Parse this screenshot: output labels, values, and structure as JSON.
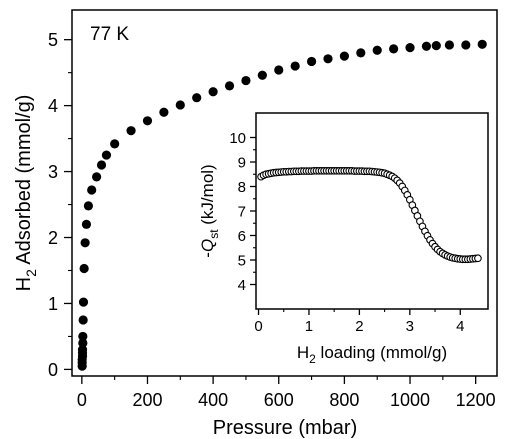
{
  "chart_data": [
    {
      "type": "scatter",
      "annotation": "77 K",
      "xlabel": "Pressure (mbar)",
      "ylabel_main": "H",
      "ylabel_sub": "2",
      "ylabel_rest": " Adsorbed (mmol/g)",
      "xlim": [
        -30,
        1265
      ],
      "ylim": [
        -0.1,
        5.45
      ],
      "xticks": [
        0,
        200,
        400,
        600,
        800,
        1000,
        1200
      ],
      "yticks": [
        0,
        1,
        2,
        3,
        4,
        5
      ],
      "marker": "filled-circle",
      "marker_color": "#000000",
      "series": [
        {
          "x": [
            1,
            1,
            1,
            2,
            2,
            2,
            3,
            3,
            4,
            5,
            7,
            10,
            14,
            20,
            30,
            45,
            60,
            75,
            100,
            150,
            200,
            250,
            300,
            350,
            400,
            450,
            500,
            550,
            600,
            650,
            700,
            750,
            800,
            850,
            900,
            950,
            1000,
            1050,
            1080,
            1120,
            1170,
            1220
          ],
          "y": [
            0.05,
            0.1,
            0.15,
            0.2,
            0.25,
            0.3,
            0.4,
            0.5,
            0.75,
            1.02,
            1.53,
            1.92,
            2.2,
            2.48,
            2.72,
            2.92,
            3.1,
            3.25,
            3.42,
            3.62,
            3.77,
            3.9,
            4.01,
            4.12,
            4.21,
            4.3,
            4.38,
            4.46,
            4.54,
            4.6,
            4.67,
            4.71,
            4.75,
            4.8,
            4.84,
            4.86,
            4.88,
            4.9,
            4.91,
            4.92,
            4.92,
            4.93
          ]
        }
      ]
    },
    {
      "type": "scatter",
      "xlabel_main": "H",
      "xlabel_sub": "2",
      "xlabel_rest": " loading (mmol/g)",
      "ylabel_prefix": "-",
      "ylabel_italic": "Q",
      "ylabel_sub": "st",
      "ylabel_rest": " (kJ/mol)",
      "xlim": [
        -0.05,
        4.55
      ],
      "ylim": [
        3.0,
        11.0
      ],
      "xticks": [
        0,
        1,
        2,
        3,
        4
      ],
      "yticks": [
        4,
        5,
        6,
        7,
        8,
        9,
        10
      ],
      "marker": "open-circle",
      "marker_color": "#000000",
      "series": [
        {
          "x": [
            0.05,
            0.1,
            0.15,
            0.2,
            0.25,
            0.3,
            0.35,
            0.4,
            0.45,
            0.5,
            0.55,
            0.6,
            0.65,
            0.7,
            0.75,
            0.8,
            0.85,
            0.9,
            0.95,
            1.0,
            1.05,
            1.1,
            1.15,
            1.2,
            1.25,
            1.3,
            1.35,
            1.4,
            1.45,
            1.5,
            1.55,
            1.6,
            1.65,
            1.7,
            1.75,
            1.8,
            1.85,
            1.9,
            1.95,
            2.0,
            2.05,
            2.1,
            2.15,
            2.2,
            2.25,
            2.3,
            2.35,
            2.4,
            2.45,
            2.5,
            2.55,
            2.6,
            2.65,
            2.7,
            2.75,
            2.8,
            2.85,
            2.9,
            2.95,
            3.0,
            3.05,
            3.1,
            3.15,
            3.2,
            3.25,
            3.3,
            3.35,
            3.4,
            3.45,
            3.5,
            3.55,
            3.6,
            3.65,
            3.7,
            3.75,
            3.8,
            3.85,
            3.9,
            3.95,
            4.0,
            4.05,
            4.1,
            4.15,
            4.2,
            4.25,
            4.3,
            4.35
          ],
          "y": [
            8.4,
            8.46,
            8.5,
            8.52,
            8.54,
            8.56,
            8.57,
            8.58,
            8.59,
            8.6,
            8.6,
            8.61,
            8.61,
            8.62,
            8.62,
            8.62,
            8.63,
            8.63,
            8.63,
            8.63,
            8.63,
            8.64,
            8.64,
            8.64,
            8.64,
            8.64,
            8.64,
            8.64,
            8.64,
            8.64,
            8.64,
            8.64,
            8.64,
            8.64,
            8.64,
            8.64,
            8.64,
            8.63,
            8.63,
            8.63,
            8.63,
            8.62,
            8.62,
            8.62,
            8.61,
            8.6,
            8.59,
            8.58,
            8.56,
            8.54,
            8.5,
            8.46,
            8.41,
            8.34,
            8.25,
            8.14,
            8.0,
            7.84,
            7.66,
            7.46,
            7.24,
            7.02,
            6.8,
            6.58,
            6.37,
            6.17,
            5.99,
            5.82,
            5.67,
            5.54,
            5.43,
            5.34,
            5.27,
            5.21,
            5.16,
            5.12,
            5.09,
            5.07,
            5.05,
            5.04,
            5.03,
            5.03,
            5.03,
            5.04,
            5.05,
            5.06,
            5.07
          ]
        }
      ]
    }
  ]
}
